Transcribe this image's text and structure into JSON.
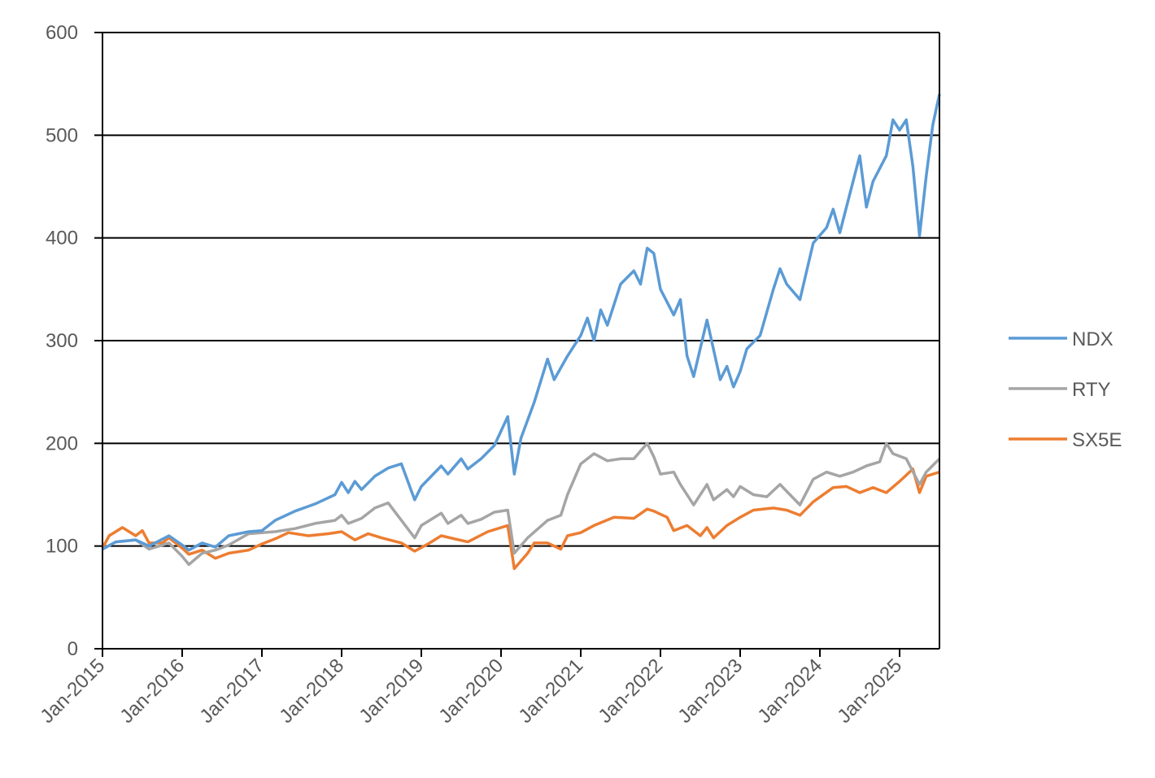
{
  "chart_data": {
    "type": "line",
    "title": "",
    "xlabel": "",
    "ylabel": "",
    "ylim": [
      0,
      600
    ],
    "xlim": [
      "2015-01",
      "2025-07"
    ],
    "grid": true,
    "legend_position": "right",
    "y_ticks": [
      "0",
      "100",
      "200",
      "300",
      "400",
      "500",
      "600"
    ],
    "x_ticks": [
      "Jan-2015",
      "Jan-2016",
      "Jan-2017",
      "Jan-2018",
      "Jan-2019",
      "Jan-2020",
      "Jan-2021",
      "Jan-2022",
      "Jan-2023",
      "Jan-2024",
      "Jan-2025"
    ],
    "x_tick_dates": [
      "2015-01",
      "2016-01",
      "2017-01",
      "2018-01",
      "2019-01",
      "2020-01",
      "2021-01",
      "2022-01",
      "2023-01",
      "2024-01",
      "2025-01"
    ],
    "series": [
      {
        "name": "NDX",
        "color": "#5B9BD5",
        "points": [
          [
            "2015-01",
            97
          ],
          [
            "2015-03",
            104
          ],
          [
            "2015-06",
            106
          ],
          [
            "2015-08",
            100
          ],
          [
            "2015-11",
            110
          ],
          [
            "2016-01",
            101
          ],
          [
            "2016-02",
            96
          ],
          [
            "2016-04",
            103
          ],
          [
            "2016-06",
            99
          ],
          [
            "2016-08",
            110
          ],
          [
            "2016-11",
            114
          ],
          [
            "2017-01",
            115
          ],
          [
            "2017-03",
            125
          ],
          [
            "2017-06",
            134
          ],
          [
            "2017-09",
            141
          ],
          [
            "2017-12",
            150
          ],
          [
            "2018-01",
            162
          ],
          [
            "2018-02",
            152
          ],
          [
            "2018-03",
            163
          ],
          [
            "2018-04",
            155
          ],
          [
            "2018-06",
            168
          ],
          [
            "2018-08",
            176
          ],
          [
            "2018-10",
            180
          ],
          [
            "2018-12",
            145
          ],
          [
            "2019-01",
            158
          ],
          [
            "2019-04",
            178
          ],
          [
            "2019-05",
            170
          ],
          [
            "2019-07",
            185
          ],
          [
            "2019-08",
            175
          ],
          [
            "2019-10",
            185
          ],
          [
            "2019-12",
            198
          ],
          [
            "2020-02",
            226
          ],
          [
            "2020-03",
            170
          ],
          [
            "2020-04",
            205
          ],
          [
            "2020-06",
            240
          ],
          [
            "2020-08",
            282
          ],
          [
            "2020-09",
            262
          ],
          [
            "2020-11",
            285
          ],
          [
            "2021-01",
            305
          ],
          [
            "2021-02",
            322
          ],
          [
            "2021-03",
            300
          ],
          [
            "2021-04",
            330
          ],
          [
            "2021-05",
            315
          ],
          [
            "2021-07",
            355
          ],
          [
            "2021-09",
            368
          ],
          [
            "2021-10",
            355
          ],
          [
            "2021-11",
            390
          ],
          [
            "2021-12",
            385
          ],
          [
            "2022-01",
            350
          ],
          [
            "2022-03",
            325
          ],
          [
            "2022-04",
            340
          ],
          [
            "2022-05",
            285
          ],
          [
            "2022-06",
            265
          ],
          [
            "2022-08",
            320
          ],
          [
            "2022-10",
            262
          ],
          [
            "2022-11",
            275
          ],
          [
            "2022-12",
            255
          ],
          [
            "2023-01",
            270
          ],
          [
            "2023-02",
            292
          ],
          [
            "2023-04",
            305
          ],
          [
            "2023-06",
            350
          ],
          [
            "2023-07",
            370
          ],
          [
            "2023-08",
            355
          ],
          [
            "2023-10",
            340
          ],
          [
            "2023-12",
            395
          ],
          [
            "2024-02",
            410
          ],
          [
            "2024-03",
            428
          ],
          [
            "2024-04",
            405
          ],
          [
            "2024-06",
            455
          ],
          [
            "2024-07",
            480
          ],
          [
            "2024-08",
            430
          ],
          [
            "2024-09",
            455
          ],
          [
            "2024-11",
            480
          ],
          [
            "2024-12",
            515
          ],
          [
            "2025-01",
            505
          ],
          [
            "2025-02",
            515
          ],
          [
            "2025-03",
            470
          ],
          [
            "2025-04",
            402
          ],
          [
            "2025-05",
            460
          ],
          [
            "2025-06",
            510
          ],
          [
            "2025-07",
            540
          ]
        ]
      },
      {
        "name": "RTY",
        "color": "#A5A5A5",
        "points": [
          [
            "2015-01",
            97
          ],
          [
            "2015-03",
            104
          ],
          [
            "2015-06",
            106
          ],
          [
            "2015-08",
            97
          ],
          [
            "2015-11",
            103
          ],
          [
            "2016-01",
            90
          ],
          [
            "2016-02",
            82
          ],
          [
            "2016-04",
            93
          ],
          [
            "2016-06",
            96
          ],
          [
            "2016-08",
            101
          ],
          [
            "2016-11",
            112
          ],
          [
            "2017-01",
            113
          ],
          [
            "2017-03",
            114
          ],
          [
            "2017-06",
            117
          ],
          [
            "2017-09",
            122
          ],
          [
            "2017-12",
            125
          ],
          [
            "2018-01",
            130
          ],
          [
            "2018-02",
            122
          ],
          [
            "2018-04",
            127
          ],
          [
            "2018-06",
            137
          ],
          [
            "2018-08",
            142
          ],
          [
            "2018-10",
            125
          ],
          [
            "2018-12",
            108
          ],
          [
            "2019-01",
            120
          ],
          [
            "2019-04",
            132
          ],
          [
            "2019-05",
            122
          ],
          [
            "2019-07",
            130
          ],
          [
            "2019-08",
            122
          ],
          [
            "2019-10",
            126
          ],
          [
            "2019-12",
            133
          ],
          [
            "2020-02",
            135
          ],
          [
            "2020-03",
            93
          ],
          [
            "2020-05",
            108
          ],
          [
            "2020-08",
            125
          ],
          [
            "2020-10",
            130
          ],
          [
            "2020-11",
            150
          ],
          [
            "2021-01",
            180
          ],
          [
            "2021-03",
            190
          ],
          [
            "2021-05",
            183
          ],
          [
            "2021-07",
            185
          ],
          [
            "2021-09",
            185
          ],
          [
            "2021-11",
            200
          ],
          [
            "2021-12",
            187
          ],
          [
            "2022-01",
            170
          ],
          [
            "2022-03",
            172
          ],
          [
            "2022-04",
            160
          ],
          [
            "2022-06",
            140
          ],
          [
            "2022-08",
            160
          ],
          [
            "2022-09",
            145
          ],
          [
            "2022-11",
            155
          ],
          [
            "2022-12",
            148
          ],
          [
            "2023-01",
            158
          ],
          [
            "2023-03",
            150
          ],
          [
            "2023-05",
            148
          ],
          [
            "2023-07",
            160
          ],
          [
            "2023-10",
            140
          ],
          [
            "2023-12",
            165
          ],
          [
            "2024-02",
            172
          ],
          [
            "2024-04",
            168
          ],
          [
            "2024-06",
            172
          ],
          [
            "2024-08",
            178
          ],
          [
            "2024-10",
            182
          ],
          [
            "2024-11",
            200
          ],
          [
            "2024-12",
            190
          ],
          [
            "2025-02",
            185
          ],
          [
            "2025-04",
            160
          ],
          [
            "2025-05",
            172
          ],
          [
            "2025-07",
            185
          ]
        ]
      },
      {
        "name": "SX5E",
        "color": "#ED7D31",
        "points": [
          [
            "2015-01",
            98
          ],
          [
            "2015-02",
            110
          ],
          [
            "2015-04",
            118
          ],
          [
            "2015-06",
            110
          ],
          [
            "2015-07",
            115
          ],
          [
            "2015-08",
            103
          ],
          [
            "2015-10",
            103
          ],
          [
            "2015-11",
            108
          ],
          [
            "2016-01",
            98
          ],
          [
            "2016-02",
            92
          ],
          [
            "2016-04",
            96
          ],
          [
            "2016-06",
            88
          ],
          [
            "2016-08",
            93
          ],
          [
            "2016-11",
            96
          ],
          [
            "2017-01",
            102
          ],
          [
            "2017-03",
            107
          ],
          [
            "2017-05",
            113
          ],
          [
            "2017-08",
            110
          ],
          [
            "2017-11",
            112
          ],
          [
            "2018-01",
            114
          ],
          [
            "2018-03",
            106
          ],
          [
            "2018-05",
            112
          ],
          [
            "2018-07",
            108
          ],
          [
            "2018-10",
            103
          ],
          [
            "2018-12",
            95
          ],
          [
            "2019-02",
            102
          ],
          [
            "2019-04",
            110
          ],
          [
            "2019-06",
            107
          ],
          [
            "2019-08",
            104
          ],
          [
            "2019-11",
            114
          ],
          [
            "2020-02",
            120
          ],
          [
            "2020-03",
            78
          ],
          [
            "2020-05",
            93
          ],
          [
            "2020-06",
            103
          ],
          [
            "2020-08",
            103
          ],
          [
            "2020-10",
            97
          ],
          [
            "2020-11",
            110
          ],
          [
            "2021-01",
            113
          ],
          [
            "2021-03",
            120
          ],
          [
            "2021-06",
            128
          ],
          [
            "2021-09",
            127
          ],
          [
            "2021-11",
            136
          ],
          [
            "2021-12",
            134
          ],
          [
            "2022-02",
            128
          ],
          [
            "2022-03",
            115
          ],
          [
            "2022-05",
            120
          ],
          [
            "2022-07",
            110
          ],
          [
            "2022-08",
            118
          ],
          [
            "2022-09",
            108
          ],
          [
            "2022-11",
            120
          ],
          [
            "2023-01",
            128
          ],
          [
            "2023-03",
            135
          ],
          [
            "2023-06",
            137
          ],
          [
            "2023-08",
            135
          ],
          [
            "2023-10",
            130
          ],
          [
            "2023-12",
            143
          ],
          [
            "2024-03",
            157
          ],
          [
            "2024-05",
            158
          ],
          [
            "2024-07",
            152
          ],
          [
            "2024-09",
            157
          ],
          [
            "2024-11",
            152
          ],
          [
            "2025-01",
            163
          ],
          [
            "2025-03",
            175
          ],
          [
            "2025-04",
            152
          ],
          [
            "2025-05",
            168
          ],
          [
            "2025-07",
            172
          ]
        ]
      }
    ]
  }
}
